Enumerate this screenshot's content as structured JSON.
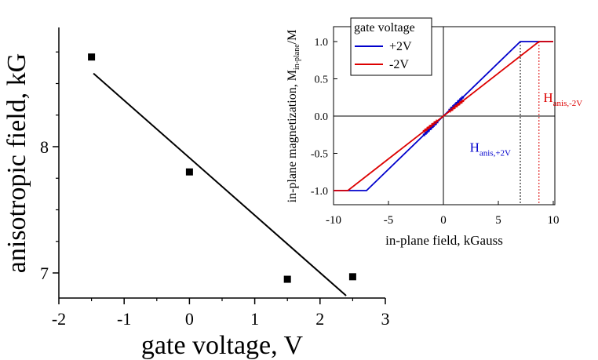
{
  "chart_data": [
    {
      "type": "scatter",
      "title": "",
      "xlabel": "gate voltage, V",
      "ylabel": "anisotropic field, kG",
      "xlim": [
        -2,
        3
      ],
      "ylim": [
        6.8,
        8.9
      ],
      "x_ticks": [
        "-2",
        "-1",
        "0",
        "1",
        "2",
        "3"
      ],
      "y_ticks": [
        "7",
        "8"
      ],
      "x_tick_values": [
        -2,
        -1,
        0,
        1,
        2,
        3
      ],
      "y_tick_values": [
        7,
        8
      ],
      "series": [
        {
          "kind": "points",
          "x": [
            -1.5,
            0,
            1.5,
            2.5
          ],
          "y": [
            8.71,
            7.8,
            6.95,
            6.97
          ],
          "color": "#000000"
        },
        {
          "kind": "fit-line",
          "x": [
            -1.47,
            2.4
          ],
          "y": [
            8.58,
            6.82
          ],
          "color": "#000000"
        }
      ]
    },
    {
      "type": "line",
      "title": "",
      "xlabel": "in-plane field, kGauss",
      "ylabel_main": "in-plane magnetization, M",
      "ylabel_sub": "in-plane",
      "ylabel_tail": "/M",
      "xlim": [
        -10,
        10
      ],
      "ylim": [
        -1.2,
        1.15
      ],
      "x_ticks": [
        "-10",
        "-5",
        "0",
        "5",
        "10"
      ],
      "y_ticks": [
        "-1.0",
        "-0.5",
        "0.0",
        "0.5",
        "1.0"
      ],
      "x_tick_values": [
        -10,
        -5,
        0,
        5,
        10
      ],
      "y_tick_values": [
        -1.0,
        -0.5,
        0.0,
        0.5,
        1.0
      ],
      "legend": {
        "title": "gate voltage",
        "placement": "top-left",
        "entries": [
          "+2V",
          "-2V"
        ]
      },
      "series": [
        {
          "name": "+2V",
          "color": "#0000cc",
          "x": [
            -10,
            -7,
            7,
            10
          ],
          "y": [
            -1,
            -1,
            1,
            1
          ]
        },
        {
          "name": "-2V",
          "color": "#dd0000",
          "x": [
            -10,
            -8.7,
            8.7,
            10
          ],
          "y": [
            -1,
            -1,
            1,
            1
          ]
        }
      ],
      "markers": [
        {
          "series": "+2V",
          "color": "#0000cc",
          "x_range": [
            -1.7,
            1.7
          ]
        },
        {
          "series": "-2V",
          "color": "#dd0000",
          "x_range": [
            -1.7,
            1.7
          ]
        }
      ],
      "vlines": [
        {
          "x": 7.0,
          "color": "#000000"
        },
        {
          "x": 8.7,
          "color": "#dd0000"
        }
      ],
      "annotations": [
        {
          "main": "H",
          "sub": "anis,+2V",
          "color": "#0000cc",
          "x": 2.4,
          "y": -0.48
        },
        {
          "main": "H",
          "sub": "anis,-2V",
          "color": "#dd0000",
          "x": 9.1,
          "y": 0.19
        }
      ]
    }
  ]
}
